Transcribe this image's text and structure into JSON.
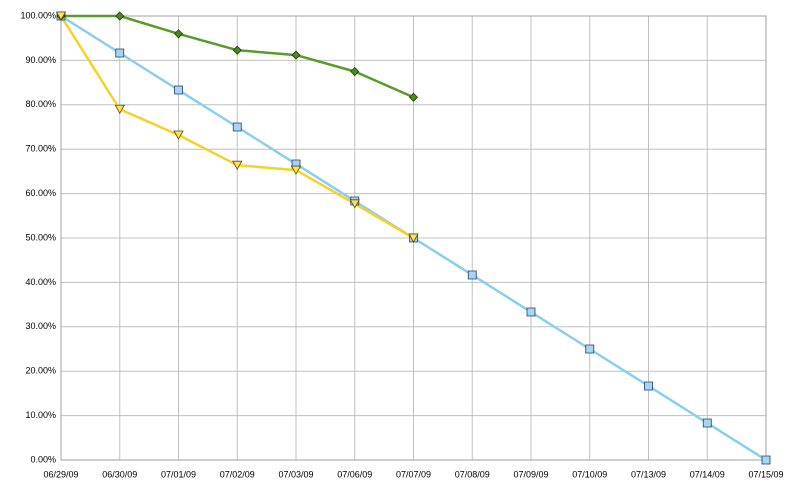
{
  "chart_data": {
    "type": "line",
    "categories": [
      "06/29/09",
      "06/30/09",
      "07/01/09",
      "07/02/09",
      "07/03/09",
      "07/06/09",
      "07/07/09",
      "07/08/09",
      "07/09/09",
      "07/10/09",
      "07/13/09",
      "07/14/09",
      "07/15/09"
    ],
    "series": [
      {
        "color": "#8ccdf0",
        "marker": "square",
        "values": [
          100,
          91.67,
          83.33,
          75,
          66.67,
          58.33,
          50,
          41.67,
          33.33,
          25,
          16.67,
          8.33,
          0
        ]
      },
      {
        "color": "#5a9a28",
        "marker": "diamond",
        "values": [
          100,
          100,
          96,
          92.3,
          91.2,
          87.5,
          81.7,
          null,
          null,
          null,
          null,
          null,
          null
        ]
      },
      {
        "color": "#f5d22a",
        "marker": "triangle",
        "values": [
          100,
          79,
          73.2,
          66.4,
          65.3,
          57.7,
          50,
          null,
          null,
          null,
          null,
          null,
          null
        ]
      }
    ],
    "ylim": [
      0,
      100
    ],
    "yticks": [
      {
        "value": 0,
        "label": "0.00%"
      },
      {
        "value": 10,
        "label": "10.00%"
      },
      {
        "value": 20,
        "label": "20.00%"
      },
      {
        "value": 30,
        "label": "30.00%"
      },
      {
        "value": 40,
        "label": "40.00%"
      },
      {
        "value": 50,
        "label": "50.00%"
      },
      {
        "value": 60,
        "label": "60.00%"
      },
      {
        "value": 70,
        "label": "70.00%"
      },
      {
        "value": 80,
        "label": "80.00%"
      },
      {
        "value": 90,
        "label": "90.00%"
      },
      {
        "value": 100,
        "label": "100.00%"
      }
    ],
    "grid": true
  }
}
